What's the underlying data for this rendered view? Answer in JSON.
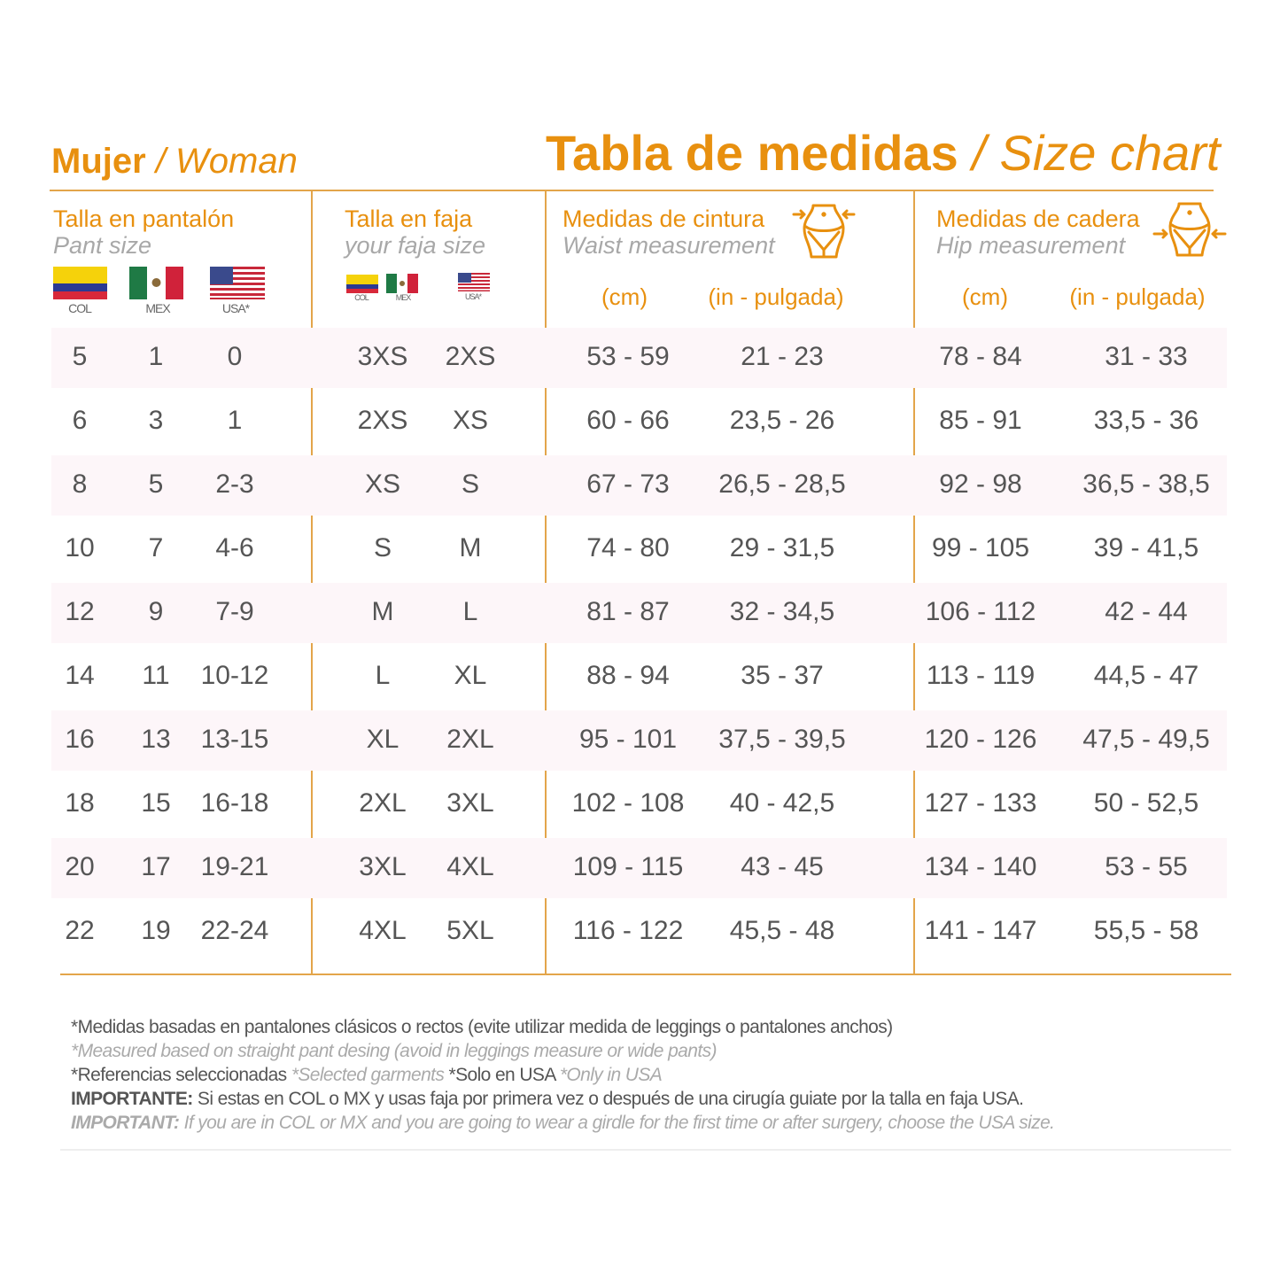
{
  "title_left": {
    "bold": "Mujer",
    "italic": "/ Woman"
  },
  "title_right": {
    "bold": "Tabla de medidas",
    "italic": "/ Size chart"
  },
  "columns": {
    "pant": {
      "title": "Talla en pantalón",
      "subtitle": "Pant size",
      "flags": [
        "COL",
        "MEX",
        "USA*"
      ]
    },
    "faja": {
      "title": "Talla en faja",
      "subtitle": "your faja size",
      "flags": [
        "COL",
        "MEX",
        "USA*"
      ]
    },
    "waist": {
      "title": "Medidas de cintura",
      "subtitle": "Waist measurement",
      "icon": "waist-body-icon",
      "units": [
        "(cm)",
        "(in - pulgada)"
      ]
    },
    "hip": {
      "title": "Medidas de cadera",
      "subtitle": "Hip measurement",
      "icon": "hip-body-icon",
      "units": [
        "(cm)",
        "(in - pulgada)"
      ]
    }
  },
  "colors": {
    "accent": "#e8900f",
    "line": "#e3a54a",
    "stripe": "#fdf6f9",
    "text": "#555555"
  },
  "rows": [
    [
      "5",
      "1",
      "0",
      "3XS",
      "2XS",
      "53 - 59",
      "21 - 23",
      "78 - 84",
      "31 - 33"
    ],
    [
      "6",
      "3",
      "1",
      "2XS",
      "XS",
      "60 - 66",
      "23,5 - 26",
      "85 - 91",
      "33,5 - 36"
    ],
    [
      "8",
      "5",
      "2-3",
      "XS",
      "S",
      "67 - 73",
      "26,5 - 28,5",
      "92 - 98",
      "36,5 - 38,5"
    ],
    [
      "10",
      "7",
      "4-6",
      "S",
      "M",
      "74 - 80",
      "29 - 31,5",
      "99 - 105",
      "39 - 41,5"
    ],
    [
      "12",
      "9",
      "7-9",
      "M",
      "L",
      "81 - 87",
      "32 - 34,5",
      "106 - 112",
      "42 - 44"
    ],
    [
      "14",
      "11",
      "10-12",
      "L",
      "XL",
      "88 - 94",
      "35 - 37",
      "113 - 119",
      "44,5 - 47"
    ],
    [
      "16",
      "13",
      "13-15",
      "XL",
      "2XL",
      "95 - 101",
      "37,5 - 39,5",
      "120 - 126",
      "47,5 - 49,5"
    ],
    [
      "18",
      "15",
      "16-18",
      "2XL",
      "3XL",
      "102 - 108",
      "40 - 42,5",
      "127 - 133",
      "50 - 52,5"
    ],
    [
      "20",
      "17",
      "19-21",
      "3XL",
      "4XL",
      "109 - 115",
      "43 - 45",
      "134 - 140",
      "53 - 55"
    ],
    [
      "22",
      "19",
      "22-24",
      "4XL",
      "5XL",
      "116 - 122",
      "45,5 - 48",
      "141 - 147",
      "55,5 - 58"
    ]
  ],
  "notes": {
    "line1": "*Medidas basadas en pantalones clásicos o rectos (evite utilizar medida de leggings o pantalones anchos)",
    "line2": "*Measured based on straight pant desing (avoid in leggings measure or wide pants)",
    "line3a": "*Referencias seleccionadas",
    "line3b": "*Selected garments",
    "line3c": "*Solo en USA",
    "line3d": "*Only in USA",
    "line4_bold": "IMPORTANTE:",
    "line4": "Si estas en COL o MX y usas faja por primera vez o después de una cirugía guiate por la talla en faja USA.",
    "line5_bold": "IMPORTANT:",
    "line5": "If you are in COL or MX and you are going to wear a girdle for the first time or after surgery, choose the USA size."
  }
}
